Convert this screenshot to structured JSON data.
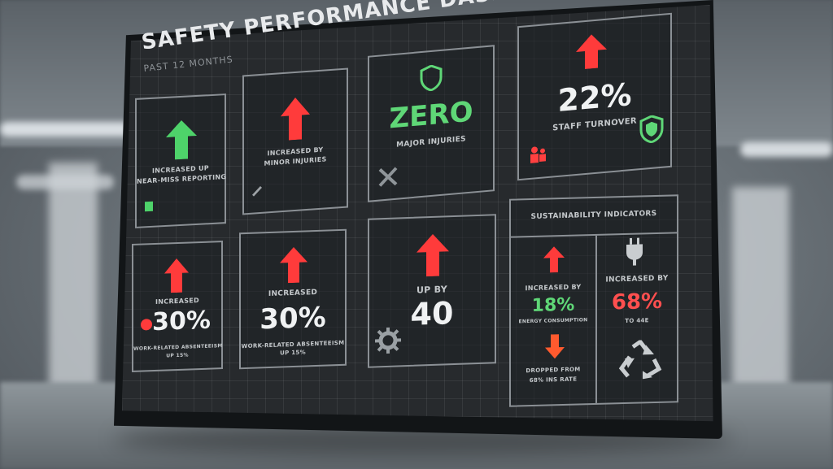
{
  "dashboard": {
    "title": "SAFETY PERFORMANCE DASHB",
    "subtitle": "PAST 12 MONTHS"
  },
  "colors": {
    "up_green": "#4ed36a",
    "up_red": "#ff3b3b",
    "down_red": "#ff5a2e",
    "accent_green": "#5fd777",
    "accent_red": "#ff4f4f"
  },
  "cards": {
    "c1": {
      "line1": "INCREASED UP",
      "line2": "NEAR-MISS REPORTING"
    },
    "c2": {
      "line1": "INCREASED BY",
      "line2": "MINOR INJURIES"
    },
    "c3": {
      "value": "ZERO",
      "label": "MAJOR INJURIES"
    },
    "c4": {
      "value": "22%",
      "label": "STAFF TURNOVER"
    },
    "c5": {
      "label_top": "INCREASED",
      "value": "30%",
      "line1": "WORK-RELATED ABSENTEEISM",
      "line2": "UP 15%"
    },
    "c6": {
      "label_top": "INCREASED",
      "value": "30%",
      "line1": "WORK-RELATED ABSENTEEISM",
      "line2": "UP 15%"
    },
    "c7": {
      "label_top": "UP BY",
      "value": "40"
    }
  },
  "sustainability": {
    "header": "SUSTAINABILITY INDICATORS",
    "left": {
      "label": "INCREASED BY",
      "value": "18%",
      "line1": "ENERGY CONSUMPTION",
      "down_line1": "DROPPED FROM",
      "down_line2": "68% INS RATE"
    },
    "right": {
      "label": "INCREASED BY",
      "value": "68%",
      "line1": "TO 44E"
    }
  },
  "icons": [
    "check-icon",
    "wrench-icon",
    "shield-icon",
    "tools-icon",
    "people-icon",
    "gear-icon",
    "plug-icon",
    "recycle-icon",
    "alert-icon"
  ]
}
